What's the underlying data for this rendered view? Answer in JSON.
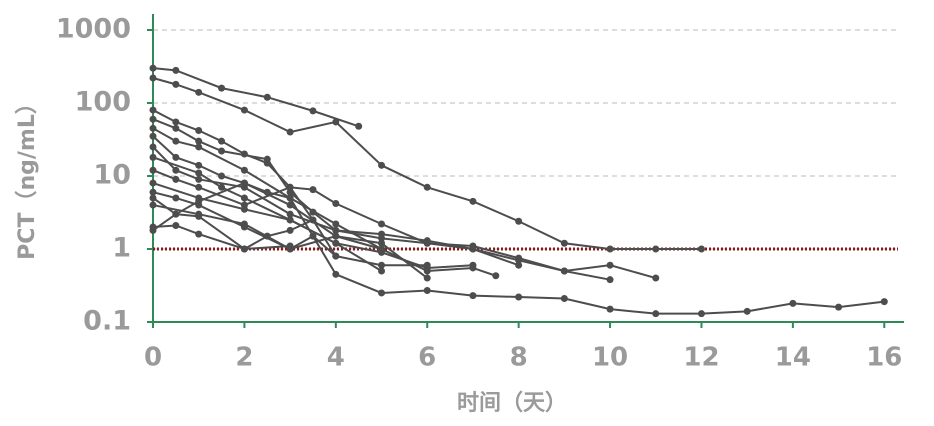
{
  "chart_data": {
    "type": "line",
    "y_label": "PCT（ng/mL）",
    "x_label": "时间（天）",
    "y_scale": "log",
    "grid": true,
    "xlim": [
      0,
      16.3
    ],
    "ylim": [
      0.1,
      1000
    ],
    "xticks": [
      0,
      2,
      4,
      6,
      8,
      10,
      12,
      14,
      16
    ],
    "yticks": [
      0.1,
      1,
      10,
      100,
      1000
    ],
    "axis_color": "#2e8b57",
    "reference_line": {
      "value": 1,
      "color": "#8b1a1a"
    },
    "series": [
      {
        "color": "#4d4d4d",
        "x": [
          0,
          0.5,
          1.5,
          2.5,
          3.5,
          4.5
        ],
        "values": [
          300,
          280,
          160,
          120,
          78,
          48
        ]
      },
      {
        "color": "#4d4d4d",
        "x": [
          0,
          0.5,
          1,
          2,
          3,
          4,
          5,
          6,
          7,
          8,
          9,
          10,
          11,
          12
        ],
        "values": [
          220,
          180,
          140,
          80,
          40,
          55,
          14,
          7,
          4.5,
          2.4,
          1.2,
          1,
          1,
          1
        ]
      },
      {
        "color": "#4d4d4d",
        "x": [
          0,
          0.5,
          1,
          1.5,
          2,
          2.5,
          3,
          3.5,
          4,
          5,
          6,
          7,
          8,
          9,
          10
        ],
        "values": [
          80,
          55,
          42,
          30,
          20,
          15,
          7,
          6.5,
          4.2,
          2.2,
          1.2,
          1.1,
          0.75,
          0.5,
          0.38
        ]
      },
      {
        "color": "#4d4d4d",
        "x": [
          0,
          0.5,
          1,
          1.5,
          2.5,
          3,
          3.5,
          4,
          5,
          6,
          7,
          8,
          9,
          10,
          11
        ],
        "values": [
          60,
          45,
          30,
          22,
          17,
          6,
          3.2,
          1.8,
          1.6,
          1.3,
          1.0,
          0.7,
          0.5,
          0.6,
          0.4
        ]
      },
      {
        "color": "#4d4d4d",
        "x": [
          0,
          0.5,
          1,
          2,
          3,
          4,
          5,
          6,
          7,
          8,
          9,
          10,
          11,
          12,
          13,
          14,
          15,
          16
        ],
        "values": [
          45,
          30,
          25,
          12,
          5,
          0.45,
          0.25,
          0.27,
          0.23,
          0.22,
          0.21,
          0.15,
          0.13,
          0.13,
          0.14,
          0.18,
          0.16,
          0.19
        ]
      },
      {
        "color": "#4d4d4d",
        "x": [
          0,
          0.5,
          1,
          1.5,
          2,
          2.5,
          3,
          4,
          5,
          6,
          7,
          7.5
        ],
        "values": [
          35,
          18,
          14,
          10,
          8,
          6,
          5,
          2.2,
          1,
          0.5,
          0.55,
          0.43
        ]
      },
      {
        "color": "#4d4d4d",
        "x": [
          0,
          0.5,
          1,
          2,
          3,
          4,
          5,
          6,
          7,
          8
        ],
        "values": [
          25,
          12,
          9,
          7,
          3,
          1.8,
          1.4,
          1.2,
          1.0,
          0.6
        ]
      },
      {
        "color": "#4d4d4d",
        "x": [
          0,
          1,
          1.5,
          2,
          3,
          4,
          5,
          6,
          7
        ],
        "values": [
          18,
          11,
          7,
          5,
          2.5,
          1.2,
          0.9,
          0.55,
          0.6
        ]
      },
      {
        "color": "#4d4d4d",
        "x": [
          0,
          0.5,
          1,
          2,
          3,
          3.5,
          4,
          5,
          6
        ],
        "values": [
          12,
          9,
          7,
          4,
          7,
          2.5,
          0.8,
          0.6,
          0.6
        ]
      },
      {
        "color": "#4d4d4d",
        "x": [
          0,
          1,
          2,
          3,
          4,
          5
        ],
        "values": [
          8,
          5,
          3.5,
          2.5,
          1.2,
          0.5
        ]
      },
      {
        "color": "#4d4d4d",
        "x": [
          0,
          0.5,
          1,
          2,
          3,
          4,
          5,
          6
        ],
        "values": [
          6,
          5,
          4,
          2,
          1,
          1.5,
          1.2,
          0.4
        ]
      },
      {
        "color": "#4d4d4d",
        "x": [
          0,
          0.5,
          1,
          2,
          2.5,
          3,
          3.5
        ],
        "values": [
          5,
          3,
          2.8,
          1,
          1.5,
          1.8,
          2.5
        ]
      },
      {
        "color": "#4d4d4d",
        "x": [
          0,
          1,
          2,
          3,
          3.5,
          4
        ],
        "values": [
          4,
          3,
          2.2,
          1.0,
          1.5,
          0.8
        ]
      },
      {
        "color": "#4d4d4d",
        "x": [
          0,
          0.5,
          1,
          2,
          3
        ],
        "values": [
          2,
          2.1,
          1.6,
          1.0,
          1.1
        ]
      },
      {
        "color": "#4d4d4d",
        "x": [
          0,
          0.5,
          1,
          2,
          3,
          4,
          5
        ],
        "values": [
          1.8,
          3,
          4.5,
          8,
          4,
          1.5,
          1.0
        ]
      }
    ]
  }
}
